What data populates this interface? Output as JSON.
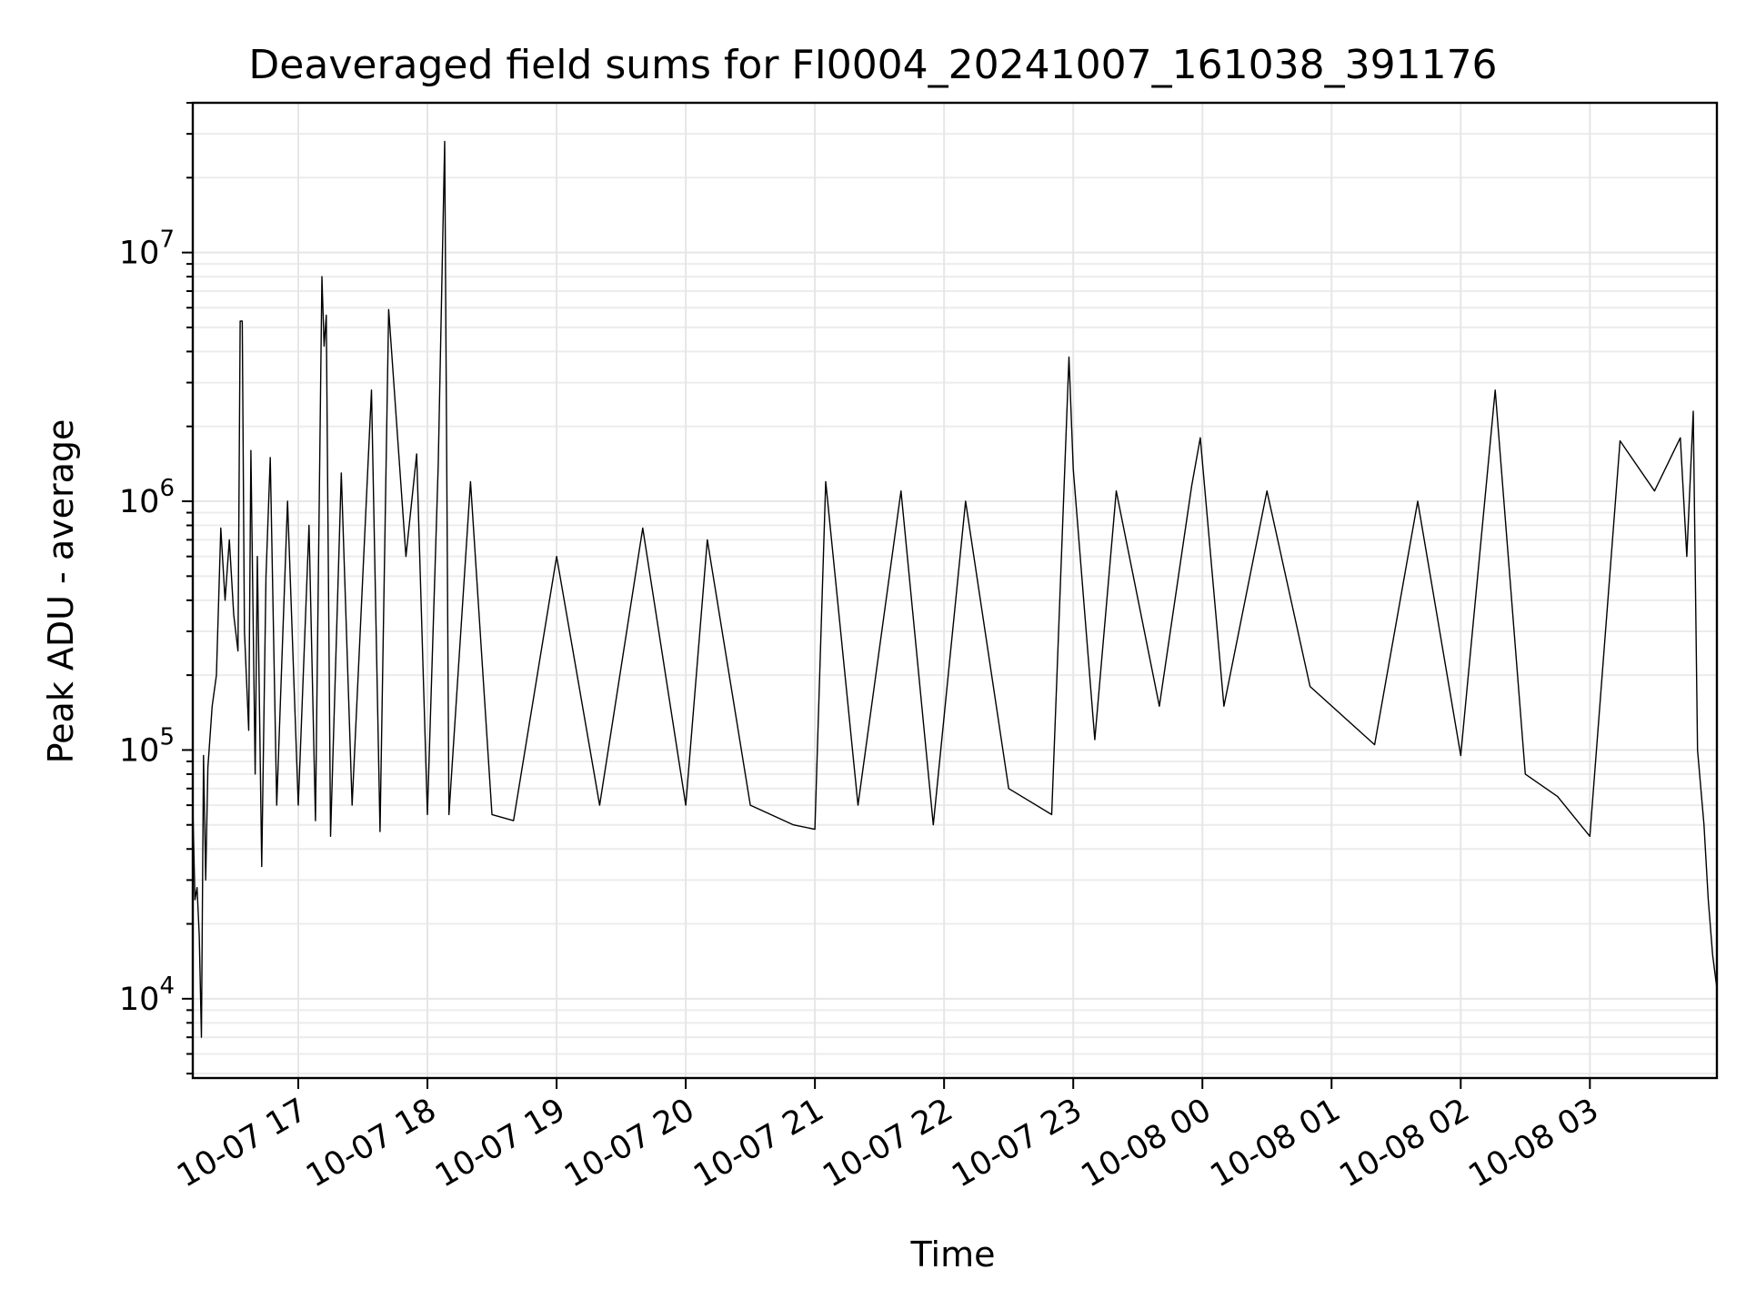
{
  "chart_data": {
    "type": "line",
    "title": "Deaveraged field sums for FI0004_20241007_161038_391176",
    "xlabel": "Time",
    "ylabel": "Peak ADU - average",
    "y_scale": "log",
    "ylim": [
      4800,
      40000000
    ],
    "xlim": [
      "2024-10-07 16:11",
      "2024-10-08 03:59"
    ],
    "grid": true,
    "x_ticks": [
      {
        "value": "2024-10-07 17:00",
        "label": "10-07 17"
      },
      {
        "value": "2024-10-07 18:00",
        "label": "10-07 18"
      },
      {
        "value": "2024-10-07 19:00",
        "label": "10-07 19"
      },
      {
        "value": "2024-10-07 20:00",
        "label": "10-07 20"
      },
      {
        "value": "2024-10-07 21:00",
        "label": "10-07 21"
      },
      {
        "value": "2024-10-07 22:00",
        "label": "10-07 22"
      },
      {
        "value": "2024-10-07 23:00",
        "label": "10-07 23"
      },
      {
        "value": "2024-10-08 00:00",
        "label": "10-08 00"
      },
      {
        "value": "2024-10-08 01:00",
        "label": "10-08 01"
      },
      {
        "value": "2024-10-08 02:00",
        "label": "10-08 02"
      },
      {
        "value": "2024-10-08 03:00",
        "label": "10-08 03"
      }
    ],
    "y_ticks": [
      {
        "value": 10000,
        "base": "10",
        "exp": "4"
      },
      {
        "value": 100000,
        "base": "10",
        "exp": "5"
      },
      {
        "value": 1000000,
        "base": "10",
        "exp": "6"
      },
      {
        "value": 10000000,
        "base": "10",
        "exp": "7"
      }
    ],
    "series": [
      {
        "color": "#000000",
        "points": [
          [
            "2024-10-07 16:11",
            60000
          ],
          [
            "2024-10-07 16:12",
            25000
          ],
          [
            "2024-10-07 16:13",
            28000
          ],
          [
            "2024-10-07 16:14",
            18000
          ],
          [
            "2024-10-07 16:15",
            7000
          ],
          [
            "2024-10-07 16:16",
            95000
          ],
          [
            "2024-10-07 16:17",
            30000
          ],
          [
            "2024-10-07 16:18",
            85000
          ],
          [
            "2024-10-07 16:20",
            150000
          ],
          [
            "2024-10-07 16:22",
            200000
          ],
          [
            "2024-10-07 16:24",
            780000
          ],
          [
            "2024-10-07 16:26",
            400000
          ],
          [
            "2024-10-07 16:28",
            700000
          ],
          [
            "2024-10-07 16:30",
            350000
          ],
          [
            "2024-10-07 16:32",
            250000
          ],
          [
            "2024-10-07 16:33",
            5300000
          ],
          [
            "2024-10-07 16:34",
            5300000
          ],
          [
            "2024-10-07 16:35",
            300000
          ],
          [
            "2024-10-07 16:37",
            120000
          ],
          [
            "2024-10-07 16:38",
            1600000
          ],
          [
            "2024-10-07 16:40",
            80000
          ],
          [
            "2024-10-07 16:41",
            600000
          ],
          [
            "2024-10-07 16:43",
            34000
          ],
          [
            "2024-10-07 16:45",
            500000
          ],
          [
            "2024-10-07 16:47",
            1500000
          ],
          [
            "2024-10-07 16:50",
            60000
          ],
          [
            "2024-10-07 16:55",
            1000000
          ],
          [
            "2024-10-07 17:00",
            60000
          ],
          [
            "2024-10-07 17:05",
            800000
          ],
          [
            "2024-10-07 17:08",
            52000
          ],
          [
            "2024-10-07 17:11",
            8000000
          ],
          [
            "2024-10-07 17:12",
            4200000
          ],
          [
            "2024-10-07 17:13",
            5600000
          ],
          [
            "2024-10-07 17:15",
            45000
          ],
          [
            "2024-10-07 17:20",
            1300000
          ],
          [
            "2024-10-07 17:25",
            60000
          ],
          [
            "2024-10-07 17:34",
            2800000
          ],
          [
            "2024-10-07 17:38",
            47000
          ],
          [
            "2024-10-07 17:42",
            5900000
          ],
          [
            "2024-10-07 17:50",
            600000
          ],
          [
            "2024-10-07 17:55",
            1550000
          ],
          [
            "2024-10-07 18:00",
            55000
          ],
          [
            "2024-10-07 18:05",
            1400000
          ],
          [
            "2024-10-07 18:08",
            28000000
          ],
          [
            "2024-10-07 18:10",
            55000
          ],
          [
            "2024-10-07 18:20",
            1200000
          ],
          [
            "2024-10-07 18:30",
            55000
          ],
          [
            "2024-10-07 18:40",
            52000
          ],
          [
            "2024-10-07 19:00",
            600000
          ],
          [
            "2024-10-07 19:20",
            60000
          ],
          [
            "2024-10-07 19:40",
            780000
          ],
          [
            "2024-10-07 20:00",
            60000
          ],
          [
            "2024-10-07 20:10",
            700000
          ],
          [
            "2024-10-07 20:30",
            60000
          ],
          [
            "2024-10-07 20:50",
            50000
          ],
          [
            "2024-10-07 21:00",
            48000
          ],
          [
            "2024-10-07 21:05",
            1200000
          ],
          [
            "2024-10-07 21:20",
            60000
          ],
          [
            "2024-10-07 21:40",
            1100000
          ],
          [
            "2024-10-07 21:55",
            50000
          ],
          [
            "2024-10-07 22:10",
            1000000
          ],
          [
            "2024-10-07 22:30",
            70000
          ],
          [
            "2024-10-07 22:50",
            55000
          ],
          [
            "2024-10-07 22:58",
            3800000
          ],
          [
            "2024-10-07 23:00",
            1350000
          ],
          [
            "2024-10-07 23:10",
            110000
          ],
          [
            "2024-10-07 23:20",
            1100000
          ],
          [
            "2024-10-07 23:40",
            150000
          ],
          [
            "2024-10-07 23:55",
            1150000
          ],
          [
            "2024-10-07 23:59",
            1800000
          ],
          [
            "2024-10-08 00:10",
            150000
          ],
          [
            "2024-10-08 00:30",
            1100000
          ],
          [
            "2024-10-08 00:50",
            180000
          ],
          [
            "2024-10-08 01:20",
            105000
          ],
          [
            "2024-10-08 01:40",
            1000000
          ],
          [
            "2024-10-08 02:00",
            95000
          ],
          [
            "2024-10-08 02:16",
            2800000
          ],
          [
            "2024-10-08 02:30",
            80000
          ],
          [
            "2024-10-08 02:45",
            65000
          ],
          [
            "2024-10-08 03:00",
            45000
          ],
          [
            "2024-10-08 03:14",
            1750000
          ],
          [
            "2024-10-08 03:30",
            1100000
          ],
          [
            "2024-10-08 03:42",
            1800000
          ],
          [
            "2024-10-08 03:45",
            600000
          ],
          [
            "2024-10-08 03:48",
            2300000
          ],
          [
            "2024-10-08 03:50",
            100000
          ],
          [
            "2024-10-08 03:53",
            50000
          ],
          [
            "2024-10-08 03:55",
            25000
          ],
          [
            "2024-10-08 03:57",
            15000
          ],
          [
            "2024-10-08 03:59",
            11000
          ]
        ]
      }
    ]
  }
}
